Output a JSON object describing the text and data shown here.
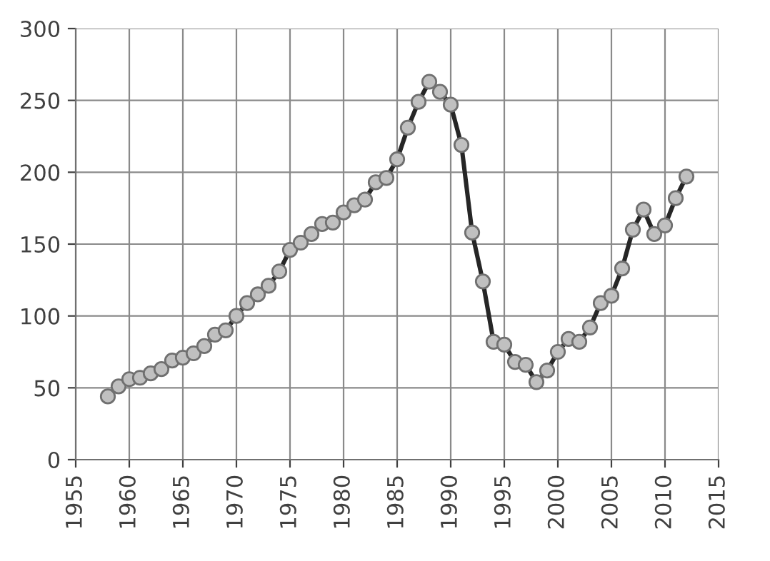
{
  "chart_data": {
    "type": "line",
    "x": [
      1958,
      1959,
      1960,
      1961,
      1962,
      1963,
      1964,
      1965,
      1966,
      1967,
      1968,
      1969,
      1970,
      1971,
      1972,
      1973,
      1974,
      1975,
      1976,
      1977,
      1978,
      1979,
      1980,
      1981,
      1982,
      1983,
      1984,
      1985,
      1986,
      1987,
      1988,
      1989,
      1990,
      1991,
      1992,
      1993,
      1994,
      1995,
      1996,
      1997,
      1998,
      1999,
      2000,
      2001,
      2002,
      2003,
      2004,
      2005,
      2006,
      2007,
      2008,
      2009,
      2010,
      2011,
      2012
    ],
    "series": [
      {
        "color": "#262626",
        "values": [
          44,
          51,
          56,
          57,
          60,
          63,
          69,
          71,
          74,
          79,
          87,
          90,
          100,
          109,
          115,
          121,
          131,
          146,
          151,
          157,
          164,
          165,
          172,
          177,
          181,
          193,
          196,
          209,
          231,
          249,
          263,
          256,
          247,
          219,
          158,
          124,
          82,
          80,
          68,
          66,
          54,
          62,
          75,
          84,
          82,
          92,
          109,
          114,
          133,
          160,
          174,
          157,
          163,
          182,
          197
        ]
      }
    ],
    "marker": "circle",
    "line_style": "solid",
    "grid": true,
    "xlim": [
      1955,
      2015
    ],
    "xticks": [
      1955,
      1960,
      1965,
      1970,
      1975,
      1980,
      1985,
      1990,
      1995,
      2000,
      2005,
      2010,
      2015
    ],
    "ylim": [
      0,
      300
    ],
    "yticks": [
      0,
      50,
      100,
      150,
      200,
      250,
      300
    ]
  }
}
